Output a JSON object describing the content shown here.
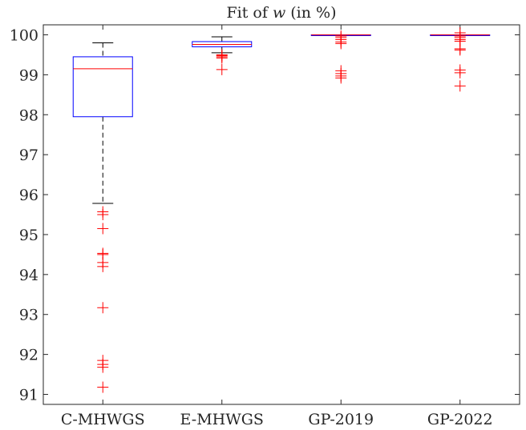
{
  "chart_data": {
    "type": "box",
    "title_prefix": "Fit of ",
    "title_var": "w",
    "title_suffix": " (in %)",
    "xlabel": "",
    "ylabel": "",
    "ylim": [
      90.75,
      100.25
    ],
    "yticks": [
      91,
      92,
      93,
      94,
      95,
      96,
      97,
      98,
      99,
      100
    ],
    "ytick_labels": [
      "91",
      "92",
      "93",
      "94",
      "95",
      "96",
      "97",
      "98",
      "99",
      "100"
    ],
    "categories": [
      "C-MHWGS",
      "E-MHWGS",
      "GP-2019",
      "GP-2022"
    ],
    "boxes": [
      {
        "name": "C-MHWGS",
        "whisker_low": 95.78,
        "q1": 97.95,
        "median": 99.15,
        "q3": 99.45,
        "whisker_high": 99.8,
        "outliers": [
          95.57,
          95.5,
          95.15,
          94.53,
          94.5,
          94.3,
          94.2,
          93.17,
          91.85,
          91.75,
          91.68,
          91.18
        ]
      },
      {
        "name": "E-MHWGS",
        "whisker_low": 99.55,
        "q1": 99.7,
        "median": 99.76,
        "q3": 99.83,
        "whisker_high": 99.95,
        "outliers": [
          99.5,
          99.48,
          99.45,
          99.42,
          99.13
        ]
      },
      {
        "name": "GP-2019",
        "whisker_low": 99.99,
        "q1": 99.995,
        "median": 99.998,
        "q3": 100.0,
        "whisker_high": 100.0,
        "outliers": [
          99.97,
          99.93,
          99.88,
          99.82,
          99.78,
          99.1,
          99.03,
          98.97,
          98.92
        ]
      },
      {
        "name": "GP-2022",
        "whisker_low": 99.99,
        "q1": 99.995,
        "median": 99.998,
        "q3": 100.0,
        "whisker_high": 100.0,
        "outliers": [
          100.05,
          99.97,
          99.93,
          99.88,
          99.84,
          99.65,
          99.62,
          99.12,
          99.05,
          98.72
        ]
      }
    ],
    "colors": {
      "box": "#0000ff",
      "median": "#ff0000",
      "whisker": "#000000",
      "outlier": "#ff0000",
      "axes": "#262626"
    },
    "grid": false,
    "legend": "none"
  }
}
